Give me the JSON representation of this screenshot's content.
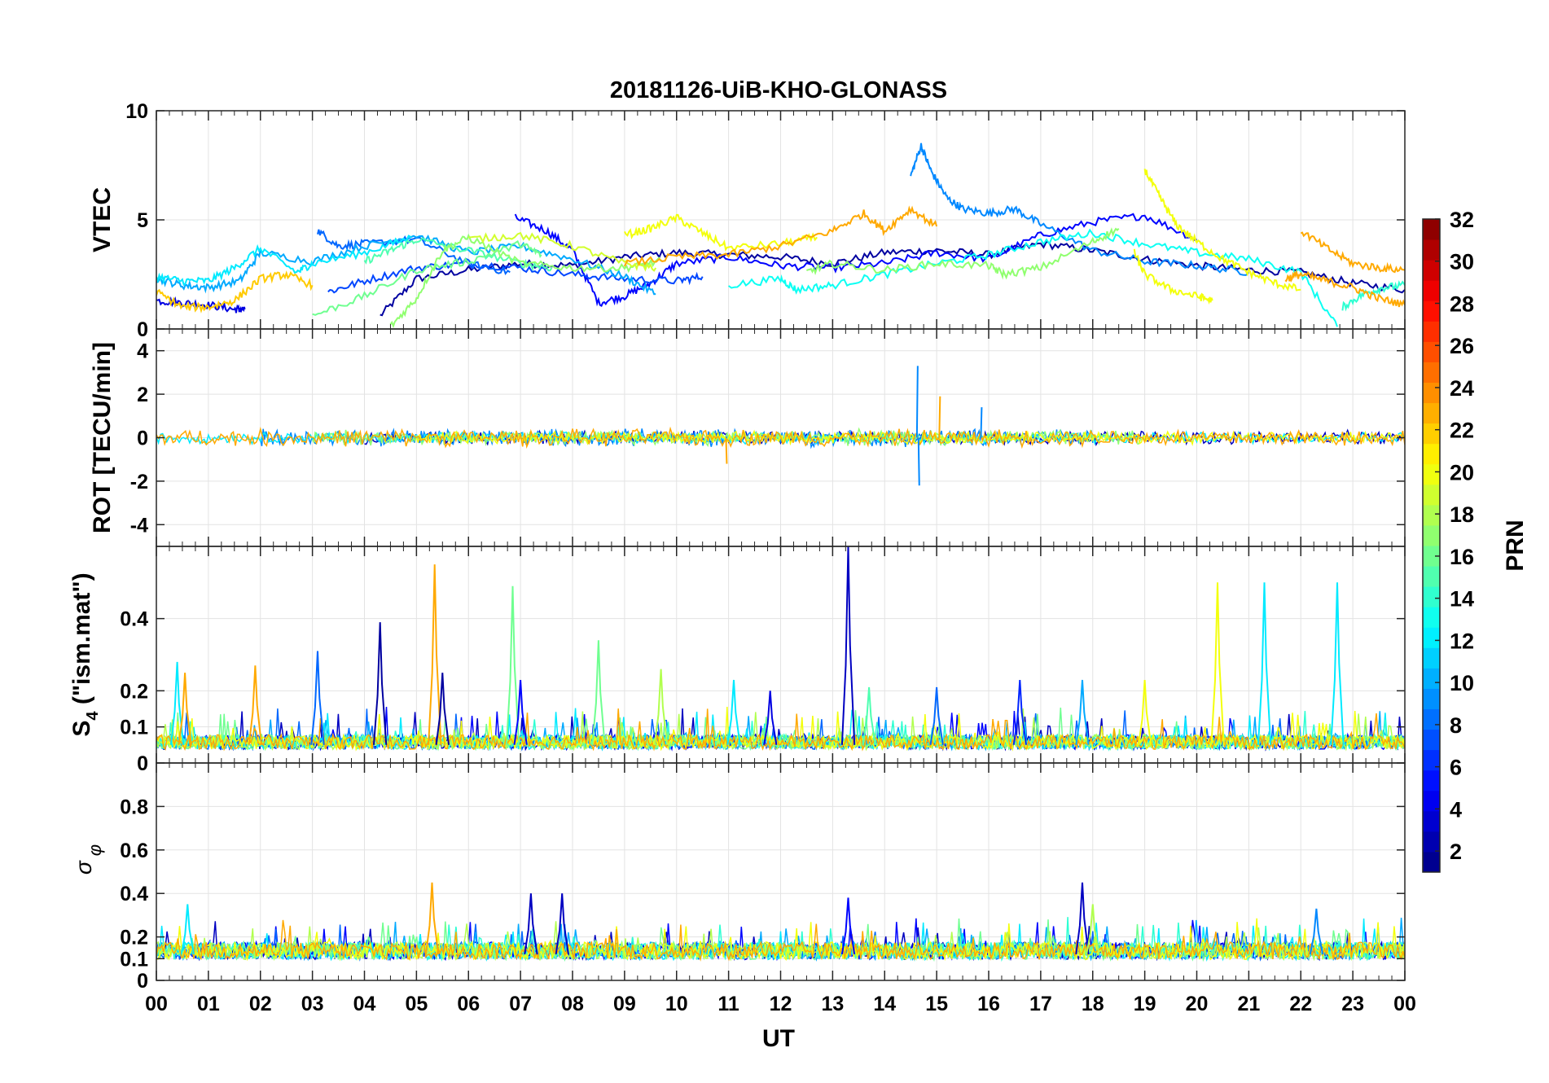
{
  "chart_data": {
    "title": "20181126-UiB-KHO-GLONASS",
    "xlabel": "UT",
    "x_ticks": [
      "00",
      "01",
      "02",
      "03",
      "04",
      "05",
      "06",
      "07",
      "08",
      "09",
      "10",
      "11",
      "12",
      "13",
      "14",
      "15",
      "16",
      "17",
      "18",
      "19",
      "20",
      "21",
      "22",
      "23",
      "00"
    ],
    "xlim": [
      0,
      24
    ],
    "grid": true,
    "colorbar": {
      "label": "PRN",
      "range": [
        1,
        32
      ],
      "ticks": [
        "2",
        "4",
        "6",
        "8",
        "10",
        "12",
        "14",
        "16",
        "18",
        "20",
        "22",
        "24",
        "26",
        "28",
        "30",
        "32"
      ],
      "colormap": "jet",
      "placement": "right"
    },
    "panels": [
      {
        "type": "line",
        "ylabel": "VTEC",
        "ylim": [
          0,
          10
        ],
        "y_ticks": [
          "0",
          "5",
          "10"
        ],
        "series": [
          {
            "prn": 2,
            "x": [
              4.3,
              5.0,
              6.0,
              7.0,
              8.0,
              9.0,
              10.0,
              11.0,
              12.0,
              13.0,
              14.0,
              15.0,
              16.0,
              17.0,
              18.0,
              19.0,
              20.0,
              21.0,
              22.0,
              23.0,
              24.0
            ],
            "y": [
              0.6,
              2.3,
              2.7,
              3.0,
              2.9,
              3.3,
              3.5,
              3.4,
              3.3,
              3.0,
              3.5,
              3.6,
              3.4,
              3.9,
              3.6,
              3.2,
              2.9,
              2.7,
              2.6,
              2.1,
              1.8
            ]
          },
          {
            "prn": 4,
            "x": [
              0.0,
              0.5,
              1.0,
              1.5,
              1.7
            ],
            "y": [
              1.3,
              1.2,
              1.1,
              0.9,
              0.9
            ]
          },
          {
            "prn": 5,
            "x": [
              6.9,
              7.5,
              8.0,
              8.5,
              9.0,
              9.5,
              10.0,
              11.0,
              12.0,
              13.0,
              14.0,
              15.0,
              16.0,
              17.0,
              18.0,
              19.0,
              20.0
            ],
            "y": [
              5.1,
              4.5,
              3.6,
              1.2,
              1.5,
              2.1,
              3.0,
              3.3,
              2.9,
              2.8,
              3.0,
              3.5,
              3.2,
              4.3,
              4.9,
              5.2,
              4.1
            ]
          },
          {
            "prn": 7,
            "x": [
              3.3,
              4.0,
              5.0,
              6.0,
              7.0,
              8.0,
              9.0,
              10.0,
              10.5
            ],
            "y": [
              1.7,
              2.2,
              2.8,
              3.0,
              2.8,
              2.5,
              2.3,
              2.2,
              2.4
            ]
          },
          {
            "prn": 8,
            "x": [
              3.1,
              3.5,
              4.0,
              5.0,
              6.0,
              6.8
            ],
            "y": [
              4.5,
              3.8,
              3.9,
              4.1,
              3.0,
              2.6
            ]
          },
          {
            "prn": 9,
            "x": [
              14.5,
              14.7,
              14.9,
              15.2,
              15.5,
              16.0,
              16.5,
              17.0,
              18.0,
              19.0,
              20.0,
              21.0
            ],
            "y": [
              7.0,
              8.4,
              7.2,
              6.0,
              5.5,
              5.3,
              5.5,
              4.8,
              3.6,
              3.1,
              2.9,
              2.6
            ]
          },
          {
            "prn": 10,
            "x": [
              0.0,
              0.5,
              1.0,
              1.6,
              2.0,
              3.0,
              4.0,
              5.0,
              6.0,
              7.0,
              8.0,
              9.0,
              9.6
            ],
            "y": [
              2.3,
              2.0,
              1.9,
              2.2,
              3.5,
              3.1,
              3.8,
              4.3,
              3.5,
              3.8,
              3.2,
              2.4,
              1.6
            ]
          },
          {
            "prn": 12,
            "x": [
              0.0,
              0.5,
              1.0,
              1.5,
              2.0,
              2.7,
              3.0,
              4.0,
              4.9
            ],
            "y": [
              2.4,
              2.2,
              2.2,
              2.8,
              3.7,
              2.6,
              3.0,
              3.5,
              4.2
            ]
          },
          {
            "prn": 13,
            "x": [
              11.0,
              12.0,
              12.3,
              13.0,
              14.0,
              15.0,
              16.0,
              17.0,
              18.0,
              19.0,
              20.0,
              21.0,
              22.0,
              22.7
            ],
            "y": [
              2.0,
              2.3,
              1.8,
              2.0,
              2.5,
              3.0,
              3.4,
              4.0,
              4.4,
              3.9,
              3.5,
              3.2,
              2.6,
              0.1
            ]
          },
          {
            "prn": 14,
            "x": [
              22.8,
              23.2,
              23.6,
              24.0
            ],
            "y": [
              1.0,
              1.6,
              1.9,
              2.0
            ]
          },
          {
            "prn": 15,
            "x": [
              4.0,
              4.5,
              5.0,
              6.0,
              7.0,
              7.6
            ],
            "y": [
              3.1,
              3.6,
              4.1,
              3.6,
              3.0,
              2.8
            ]
          },
          {
            "prn": 16,
            "x": [
              3.0,
              4.0,
              5.0,
              6.0,
              7.0,
              7.4
            ],
            "y": [
              0.6,
              1.5,
              2.7,
              3.1,
              3.9,
              3.4
            ]
          },
          {
            "prn": 17,
            "x": [
              4.5,
              5.0,
              5.5,
              6.0,
              7.0,
              8.0,
              9.0,
              9.7
            ],
            "y": [
              0.1,
              1.4,
              3.6,
              4.2,
              3.0,
              2.8,
              2.8,
              3.1
            ]
          },
          {
            "prn": 17,
            "x": [
              12.5,
              13.0,
              14.0,
              15.0,
              16.0,
              16.3,
              17.0,
              18.0,
              18.5
            ],
            "y": [
              2.6,
              3.0,
              2.7,
              3.0,
              2.9,
              2.5,
              2.8,
              4.0,
              4.6
            ]
          },
          {
            "prn": 19,
            "x": [
              6.0,
              7.0,
              8.0,
              9.0,
              9.6
            ],
            "y": [
              4.1,
              4.3,
              3.8,
              3.0,
              2.8
            ]
          },
          {
            "prn": 20,
            "x": [
              9.0,
              9.5,
              10.0,
              10.5,
              11.0,
              12.0,
              12.7
            ],
            "y": [
              4.3,
              4.6,
              5.1,
              4.4,
              3.7,
              3.9,
              4.2
            ]
          },
          {
            "prn": 20,
            "x": [
              19.0,
              19.3,
              19.6,
              20.0,
              20.5,
              21.0,
              21.5,
              22.0
            ],
            "y": [
              7.3,
              6.0,
              4.8,
              4.0,
              3.2,
              2.6,
              2.1,
              1.8
            ]
          },
          {
            "prn": 20,
            "x": [
              18.8,
              19.0,
              19.5,
              20.0,
              20.3
            ],
            "y": [
              3.5,
              2.5,
              1.8,
              1.5,
              1.3
            ]
          },
          {
            "prn": 22,
            "x": [
              0.0,
              0.5,
              1.0,
              1.5,
              2.0,
              2.5,
              3.0
            ],
            "y": [
              1.7,
              1.0,
              1.0,
              1.3,
              2.3,
              2.5,
              2.0
            ]
          },
          {
            "prn": 23,
            "x": [
              9.0,
              10.0,
              11.0,
              12.0,
              13.0,
              13.6,
              14.0,
              14.5,
              15.0
            ],
            "y": [
              3.0,
              3.3,
              3.4,
              3.8,
              4.5,
              5.3,
              4.5,
              5.5,
              4.7
            ]
          },
          {
            "prn": 23,
            "x": [
              22.0,
              22.5,
              23.0,
              23.5,
              24.0
            ],
            "y": [
              4.5,
              3.7,
              3.0,
              2.8,
              2.7
            ]
          },
          {
            "prn": 23,
            "x": [
              21.7,
              22.0,
              22.5,
              23.0,
              23.5,
              24.0
            ],
            "y": [
              2.3,
              2.5,
              2.2,
              1.9,
              1.4,
              1.1
            ]
          }
        ]
      },
      {
        "type": "line",
        "ylabel": "ROT [TECU/min]",
        "ylim": [
          -5,
          5
        ],
        "y_ticks": [
          "-4",
          "-2",
          "0",
          "2",
          "4"
        ],
        "description_level": "fluctuations around 0 within about ±1 TECU/min, larger spikes near 14.6-15.2 UT",
        "spikes": [
          {
            "prn": 9,
            "x": 14.62,
            "y": 3.3
          },
          {
            "prn": 9,
            "x": 14.65,
            "y": -2.2
          },
          {
            "prn": 23,
            "x": 15.05,
            "y": 1.9
          },
          {
            "prn": 9,
            "x": 15.85,
            "y": 1.4
          },
          {
            "prn": 23,
            "x": 10.95,
            "y": -1.2
          }
        ],
        "series_amplitudes": [
          {
            "prn": 3,
            "x_range": [
              4.0,
              24.0
            ],
            "amp": 0.35
          },
          {
            "prn": 9,
            "x_range": [
              2.0,
              18.0
            ],
            "amp": 0.45
          },
          {
            "prn": 12,
            "x_range": [
              0.0,
              24.0
            ],
            "amp": 0.3
          },
          {
            "prn": 17,
            "x_range": [
              3.0,
              19.0
            ],
            "amp": 0.4
          },
          {
            "prn": 20,
            "x_range": [
              5.0,
              24.0
            ],
            "amp": 0.3
          },
          {
            "prn": 23,
            "x_range": [
              0.0,
              24.0
            ],
            "amp": 0.45
          }
        ]
      },
      {
        "type": "line",
        "ylabel": "S4 (\"ism.mat\")",
        "ylabel_main": "S",
        "ylabel_sub": "4",
        "ylabel_rest": " (\"ism.mat\")",
        "ylim": [
          0,
          0.6
        ],
        "y_ticks": [
          "0",
          "0.1",
          "0.2",
          "0.4"
        ],
        "baseline": 0.05,
        "spikes": [
          {
            "prn": 12,
            "x": 0.4,
            "y": 0.28
          },
          {
            "prn": 23,
            "x": 0.55,
            "y": 0.25
          },
          {
            "prn": 23,
            "x": 1.9,
            "y": 0.27
          },
          {
            "prn": 8,
            "x": 3.1,
            "y": 0.31
          },
          {
            "prn": 2,
            "x": 4.3,
            "y": 0.39
          },
          {
            "prn": 23,
            "x": 5.35,
            "y": 0.55
          },
          {
            "prn": 2,
            "x": 5.5,
            "y": 0.25
          },
          {
            "prn": 16,
            "x": 6.85,
            "y": 0.49
          },
          {
            "prn": 5,
            "x": 7.0,
            "y": 0.23
          },
          {
            "prn": 16,
            "x": 8.5,
            "y": 0.34
          },
          {
            "prn": 18,
            "x": 9.7,
            "y": 0.26
          },
          {
            "prn": 12,
            "x": 11.1,
            "y": 0.23
          },
          {
            "prn": 4,
            "x": 11.8,
            "y": 0.2
          },
          {
            "prn": 3,
            "x": 13.3,
            "y": 0.6
          },
          {
            "prn": 15,
            "x": 13.7,
            "y": 0.21
          },
          {
            "prn": 8,
            "x": 15.0,
            "y": 0.21
          },
          {
            "prn": 6,
            "x": 16.6,
            "y": 0.23
          },
          {
            "prn": 10,
            "x": 17.8,
            "y": 0.23
          },
          {
            "prn": 20,
            "x": 19.0,
            "y": 0.23
          },
          {
            "prn": 20,
            "x": 20.4,
            "y": 0.5
          },
          {
            "prn": 12,
            "x": 21.3,
            "y": 0.5
          },
          {
            "prn": 12,
            "x": 22.7,
            "y": 0.5
          }
        ]
      },
      {
        "type": "line",
        "ylabel": "σ φ",
        "ylabel_main": "σ",
        "ylabel_sub": "φ",
        "ylim": [
          0,
          1
        ],
        "y_ticks": [
          "0",
          "0.1",
          "0.2",
          "0.4",
          "0.6",
          "0.8"
        ],
        "baseline": 0.12,
        "spikes": [
          {
            "prn": 12,
            "x": 0.6,
            "y": 0.35
          },
          {
            "prn": 23,
            "x": 5.3,
            "y": 0.45
          },
          {
            "prn": 3,
            "x": 7.2,
            "y": 0.4
          },
          {
            "prn": 3,
            "x": 7.8,
            "y": 0.4
          },
          {
            "prn": 5,
            "x": 13.3,
            "y": 0.38
          },
          {
            "prn": 3,
            "x": 17.8,
            "y": 0.45
          },
          {
            "prn": 18,
            "x": 18.0,
            "y": 0.35
          },
          {
            "prn": 9,
            "x": 22.3,
            "y": 0.33
          }
        ]
      }
    ]
  }
}
